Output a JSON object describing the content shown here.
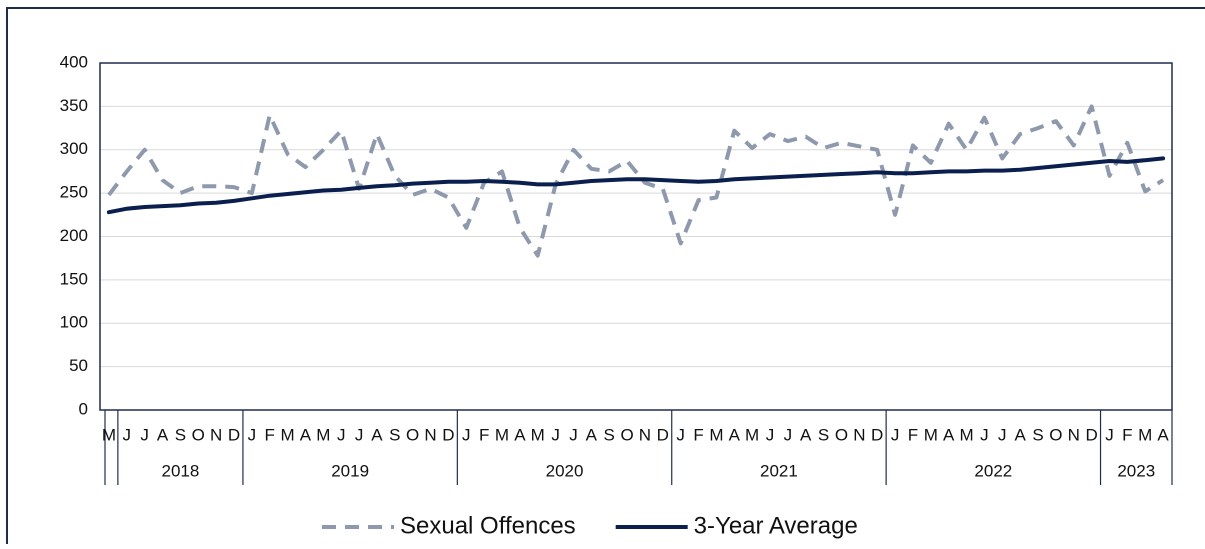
{
  "chart_data": {
    "type": "line",
    "category_groups": [
      {
        "label": null,
        "categories": [
          "M"
        ]
      },
      {
        "label": "2018",
        "categories": [
          "J",
          "J",
          "A",
          "S",
          "O",
          "N",
          "D"
        ]
      },
      {
        "label": "2019",
        "categories": [
          "J",
          "F",
          "M",
          "A",
          "M",
          "J",
          "J",
          "A",
          "S",
          "O",
          "N",
          "D"
        ]
      },
      {
        "label": "2020",
        "categories": [
          "J",
          "F",
          "M",
          "A",
          "M",
          "J",
          "J",
          "A",
          "S",
          "O",
          "N",
          "D"
        ]
      },
      {
        "label": "2021",
        "categories": [
          "J",
          "F",
          "M",
          "A",
          "M",
          "J",
          "J",
          "A",
          "S",
          "O",
          "N",
          "D"
        ]
      },
      {
        "label": "2022",
        "categories": [
          "J",
          "F",
          "M",
          "A",
          "M",
          "J",
          "J",
          "A",
          "S",
          "O",
          "N",
          "D"
        ]
      },
      {
        "label": "2023",
        "categories": [
          "J",
          "F",
          "M",
          "A"
        ]
      }
    ],
    "series": [
      {
        "name": "Sexual Offences",
        "color": "#8e99ad",
        "dashed": true,
        "values": [
          248,
          275,
          300,
          265,
          250,
          258,
          258,
          257,
          250,
          340,
          295,
          280,
          300,
          322,
          255,
          318,
          270,
          248,
          255,
          245,
          210,
          262,
          275,
          210,
          178,
          260,
          300,
          278,
          275,
          287,
          262,
          255,
          192,
          242,
          245,
          322,
          302,
          318,
          310,
          315,
          302,
          308,
          304,
          300,
          225,
          305,
          285,
          330,
          300,
          337,
          290,
          318,
          325,
          333,
          305,
          350,
          270,
          308,
          252,
          265
        ]
      },
      {
        "name": "3-Year Average",
        "color": "#0b1f4f",
        "dashed": false,
        "values": [
          228,
          232,
          234,
          235,
          236,
          238,
          239,
          241,
          244,
          247,
          249,
          251,
          253,
          254,
          256,
          258,
          259,
          261,
          262,
          263,
          263,
          264,
          263,
          262,
          260,
          260,
          262,
          264,
          265,
          266,
          266,
          265,
          264,
          263,
          264,
          266,
          267,
          268,
          269,
          270,
          271,
          272,
          273,
          274,
          273,
          273,
          274,
          275,
          275,
          276,
          276,
          277,
          279,
          281,
          283,
          285,
          287,
          286,
          288,
          290
        ]
      }
    ],
    "ylim": [
      0,
      400
    ],
    "yticks": [
      0,
      50,
      100,
      150,
      200,
      250,
      300,
      350,
      400
    ],
    "grid": true,
    "legend": "bottom"
  }
}
